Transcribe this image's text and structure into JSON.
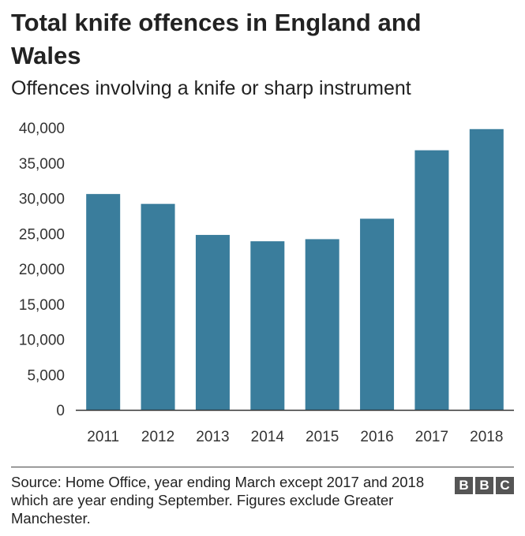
{
  "chart_data": {
    "type": "bar",
    "title": "Total knife offences in England and Wales",
    "subtitle": "Offences involving a knife or sharp instrument",
    "categories": [
      "2011",
      "2012",
      "2013",
      "2014",
      "2015",
      "2016",
      "2017",
      "2018"
    ],
    "values": [
      30600,
      29200,
      24800,
      23900,
      24200,
      27100,
      36800,
      39800
    ],
    "ylim": [
      0,
      40000
    ],
    "yticks": [
      0,
      5000,
      10000,
      15000,
      20000,
      25000,
      30000,
      35000,
      40000
    ],
    "ytick_labels": [
      "0",
      "5,000",
      "10,000",
      "15,000",
      "20,000",
      "25,000",
      "30,000",
      "35,000",
      "40,000"
    ],
    "bar_color": "#3a7d9c",
    "grid": false,
    "legend": "none"
  },
  "source": "Source: Home Office, year ending March except 2017 and 2018 which are year ending September. Figures exclude Greater Manchester.",
  "logo": [
    "B",
    "B",
    "C"
  ]
}
